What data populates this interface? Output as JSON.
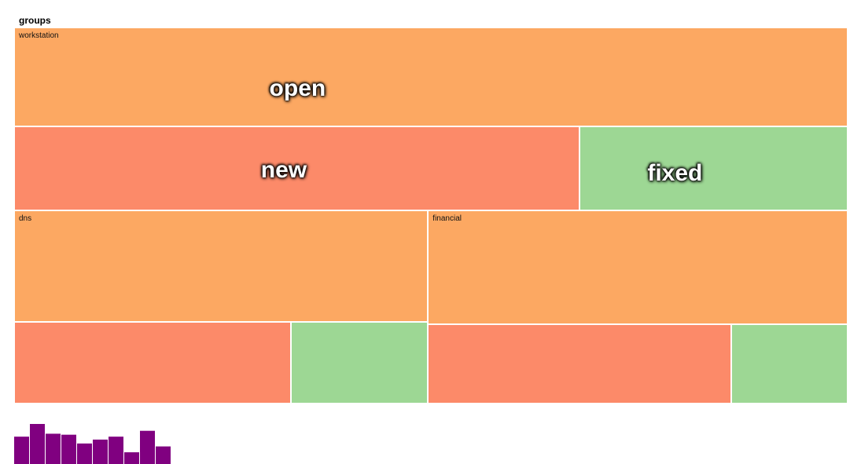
{
  "title": "groups",
  "colors": {
    "open": "#fca862",
    "new": "#fc8a69",
    "fixed": "#9dd794",
    "histogram": "#800080"
  },
  "chart_data": [
    {
      "type": "treemap",
      "title": "groups",
      "groups": [
        {
          "name": "workstation",
          "open": 1325,
          "new": 759,
          "fixed": 360
        },
        {
          "name": "dns",
          "open": 741,
          "new": 362,
          "fixed": 180
        },
        {
          "name": "financial",
          "open": 765,
          "new": 387,
          "fixed": 149
        }
      ],
      "labels_shown": {
        "open": "open",
        "new": "new",
        "fixed": "fixed"
      }
    },
    {
      "type": "bar",
      "values": [
        28,
        41,
        31,
        30,
        21,
        25,
        28,
        12,
        34,
        18
      ],
      "ylim": [
        0,
        41
      ]
    }
  ]
}
